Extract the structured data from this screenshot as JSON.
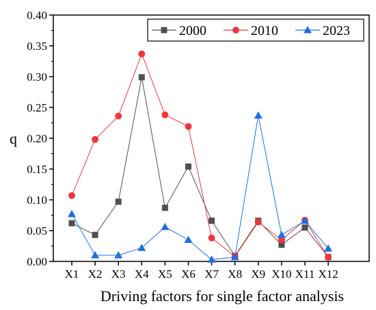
{
  "chart_data": {
    "type": "line",
    "xlabel": "Driving factors for single factor analysis",
    "ylabel": "q",
    "ylim": [
      0,
      0.4
    ],
    "yticks": [
      "0.00",
      "0.05",
      "0.10",
      "0.15",
      "0.20",
      "0.25",
      "0.30",
      "0.35",
      "0.40"
    ],
    "categories": [
      "X1",
      "X2",
      "X3",
      "X4",
      "X5",
      "X6",
      "X7",
      "X8",
      "X9",
      "X10",
      "X11",
      "X12"
    ],
    "legend_position": "top-right",
    "grid": false,
    "series": [
      {
        "name": "2000",
        "color": "#505050",
        "marker": "square",
        "values": [
          0.062,
          0.043,
          0.097,
          0.299,
          0.087,
          0.154,
          0.066,
          0.009,
          0.066,
          0.027,
          0.055,
          0.007
        ]
      },
      {
        "name": "2010",
        "color": "#e8393f",
        "marker": "circle",
        "values": [
          0.107,
          0.198,
          0.236,
          0.337,
          0.238,
          0.219,
          0.038,
          0.008,
          0.064,
          0.035,
          0.067,
          0.007
        ]
      },
      {
        "name": "2023",
        "color": "#1f6fe0",
        "marker": "triangle",
        "values": [
          0.077,
          0.01,
          0.01,
          0.022,
          0.056,
          0.035,
          0.003,
          0.007,
          0.237,
          0.043,
          0.066,
          0.021
        ]
      }
    ]
  }
}
